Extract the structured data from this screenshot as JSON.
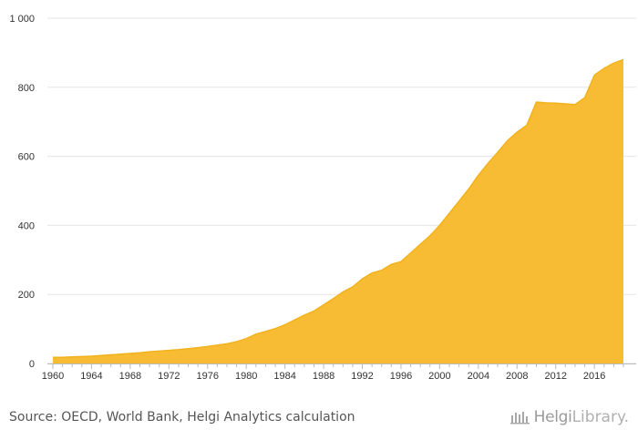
{
  "chart_data": {
    "type": "area",
    "x": [
      1960,
      1961,
      1962,
      1963,
      1964,
      1965,
      1966,
      1967,
      1968,
      1969,
      1970,
      1971,
      1972,
      1973,
      1974,
      1975,
      1976,
      1977,
      1978,
      1979,
      1980,
      1981,
      1982,
      1983,
      1984,
      1985,
      1986,
      1987,
      1988,
      1989,
      1990,
      1991,
      1992,
      1993,
      1994,
      1995,
      1996,
      1997,
      1998,
      1999,
      2000,
      2001,
      2002,
      2003,
      2004,
      2005,
      2006,
      2007,
      2008,
      2009,
      2010,
      2011,
      2012,
      2013,
      2014,
      2015,
      2016,
      2017,
      2018,
      2019
    ],
    "series": [
      {
        "values": [
          18,
          18,
          19,
          20,
          21,
          23,
          25,
          27,
          29,
          31,
          34,
          36,
          38,
          40,
          43,
          46,
          49,
          53,
          57,
          63,
          72,
          85,
          93,
          101,
          112,
          126,
          140,
          152,
          170,
          188,
          207,
          222,
          245,
          262,
          270,
          287,
          295,
          320,
          345,
          370,
          400,
          435,
          470,
          505,
          545,
          580,
          612,
          645,
          670,
          690,
          757,
          755,
          754,
          752,
          750,
          770,
          835,
          855,
          870,
          880
        ]
      }
    ],
    "x_ticks": [
      "1960",
      "1964",
      "1968",
      "1972",
      "1976",
      "1980",
      "1984",
      "1988",
      "1992",
      "1996",
      "2000",
      "2004",
      "2008",
      "2012",
      "2016"
    ],
    "y_ticks": [
      "0",
      "200",
      "400",
      "600",
      "800",
      "1 000"
    ],
    "ylim": [
      0,
      1000
    ],
    "title": "",
    "xlabel": "",
    "ylabel": "",
    "grid": "horizontal",
    "fill_color": "#f7bc33",
    "line_color": "#f2b21e"
  },
  "footer": {
    "source": "Source: OECD, World Bank, Helgi Analytics calculation",
    "brand_main": "Helgi",
    "brand_sub": "Library."
  }
}
